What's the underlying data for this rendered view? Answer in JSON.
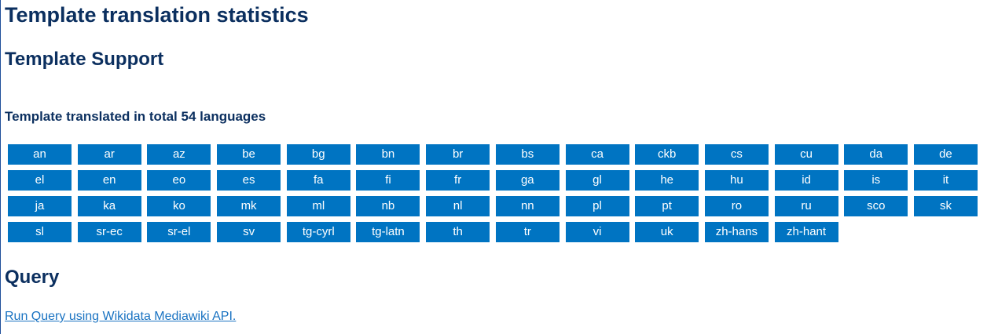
{
  "page": {
    "title": "Template translation statistics"
  },
  "support": {
    "title": "Template Support",
    "summary": "Template translated in total 54 languages",
    "languages": [
      "an",
      "ar",
      "az",
      "be",
      "bg",
      "bn",
      "br",
      "bs",
      "ca",
      "ckb",
      "cs",
      "cu",
      "da",
      "de",
      "el",
      "en",
      "eo",
      "es",
      "fa",
      "fi",
      "fr",
      "ga",
      "gl",
      "he",
      "hu",
      "id",
      "is",
      "it",
      "ja",
      "ka",
      "ko",
      "mk",
      "ml",
      "nb",
      "nl",
      "nn",
      "pl",
      "pt",
      "ro",
      "ru",
      "sco",
      "sk",
      "sl",
      "sr-ec",
      "sr-el",
      "sv",
      "tg-cyrl",
      "tg-latn",
      "th",
      "tr",
      "vi",
      "uk",
      "zh-hans",
      "zh-hant"
    ]
  },
  "query": {
    "title": "Query",
    "link_text": "Run Query using Wikidata Mediawiki API."
  },
  "colors": {
    "heading": "#0b2f5f",
    "button_bg": "#0074c2",
    "button_text": "#ffffff",
    "link": "#1a73c2"
  }
}
